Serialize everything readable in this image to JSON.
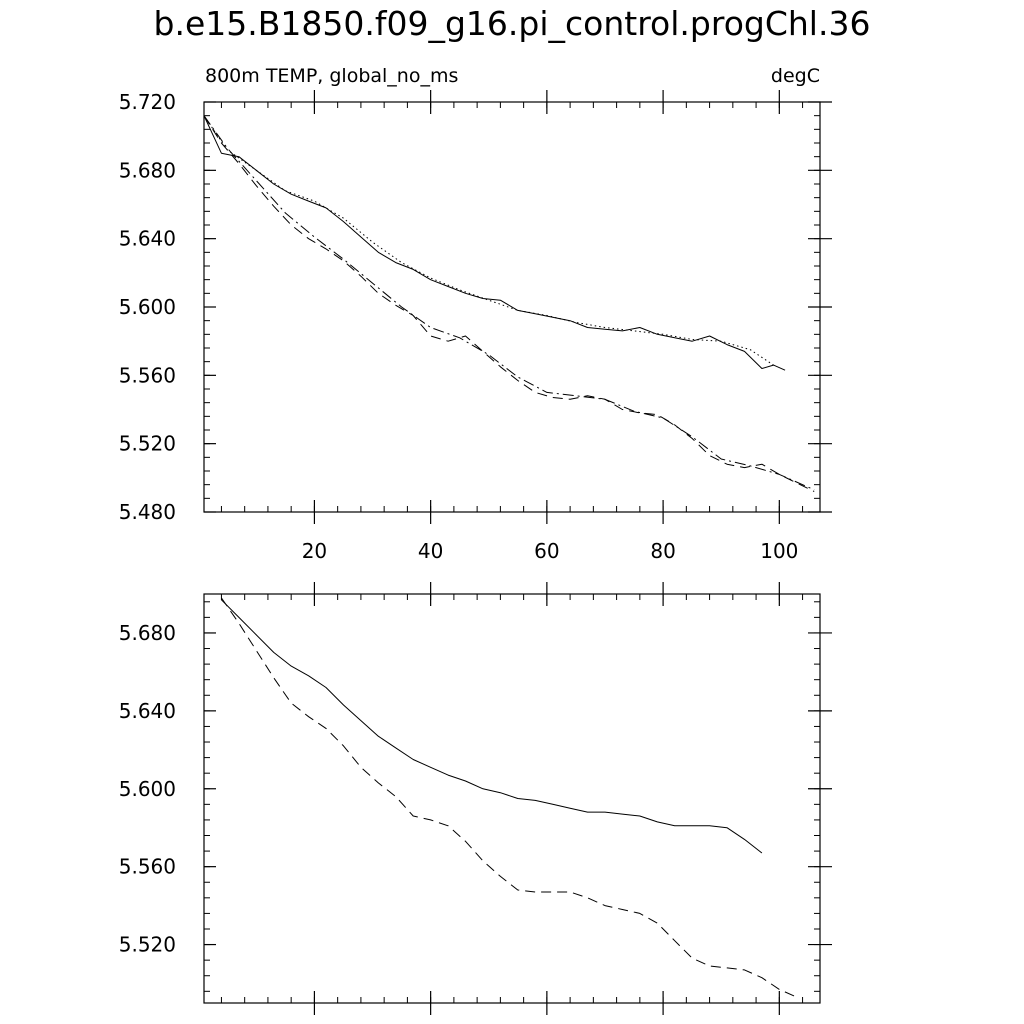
{
  "title": "b.e15.B1850.f09_g16.pi_control.progChl.36",
  "chart_data": [
    {
      "type": "line",
      "left_label": "800m TEMP, global_no_ms",
      "right_label": "degC",
      "xlim": [
        1,
        107
      ],
      "ylim": [
        5.48,
        5.72
      ],
      "xticks": [
        20,
        40,
        60,
        80,
        100
      ],
      "xtick_labels": [
        "20",
        "40",
        "60",
        "80",
        "100"
      ],
      "yticks": [
        5.48,
        5.52,
        5.56,
        5.6,
        5.64,
        5.68,
        5.72
      ],
      "ytick_labels": [
        "5.480",
        "5.520",
        "5.560",
        "5.600",
        "5.640",
        "5.680",
        "5.720"
      ],
      "series": [
        {
          "style": "solid",
          "x": [
            1,
            4,
            7,
            10,
            13,
            16,
            19,
            22,
            25,
            28,
            31,
            34,
            37,
            40,
            43,
            46,
            49,
            52,
            55,
            58,
            61,
            64,
            67,
            70,
            73,
            76,
            79,
            82,
            85,
            88,
            91,
            94,
            97,
            99,
            101
          ],
          "y": [
            5.712,
            5.69,
            5.688,
            5.68,
            5.672,
            5.666,
            5.662,
            5.658,
            5.65,
            5.641,
            5.632,
            5.626,
            5.622,
            5.616,
            5.612,
            5.608,
            5.605,
            5.604,
            5.598,
            5.596,
            5.594,
            5.592,
            5.588,
            5.587,
            5.586,
            5.588,
            5.584,
            5.582,
            5.58,
            5.583,
            5.578,
            5.574,
            5.564,
            5.566,
            5.563
          ]
        },
        {
          "style": "dotted",
          "x": [
            1,
            5,
            10,
            15,
            20,
            25,
            30,
            35,
            40,
            45,
            50,
            55,
            60,
            65,
            70,
            75,
            80,
            85,
            90,
            95,
            99
          ],
          "y": [
            5.712,
            5.692,
            5.68,
            5.668,
            5.662,
            5.652,
            5.638,
            5.626,
            5.617,
            5.61,
            5.604,
            5.598,
            5.595,
            5.591,
            5.588,
            5.586,
            5.584,
            5.581,
            5.58,
            5.575,
            5.566
          ]
        },
        {
          "style": "dashed",
          "x": [
            1,
            4,
            7,
            10,
            13,
            16,
            19,
            22,
            25,
            28,
            31,
            34,
            37,
            40,
            43,
            46,
            49,
            52,
            55,
            58,
            61,
            64,
            67,
            70,
            73,
            76,
            79,
            82,
            85,
            88,
            91,
            94,
            97,
            100,
            103,
            106
          ],
          "y": [
            5.712,
            5.696,
            5.684,
            5.671,
            5.659,
            5.648,
            5.64,
            5.634,
            5.627,
            5.618,
            5.608,
            5.601,
            5.595,
            5.583,
            5.58,
            5.583,
            5.574,
            5.565,
            5.557,
            5.55,
            5.547,
            5.546,
            5.548,
            5.546,
            5.54,
            5.538,
            5.537,
            5.531,
            5.523,
            5.513,
            5.508,
            5.506,
            5.508,
            5.502,
            5.497,
            5.492
          ]
        },
        {
          "style": "dashdot",
          "x": [
            1,
            5,
            10,
            15,
            20,
            25,
            30,
            35,
            40,
            45,
            50,
            55,
            60,
            65,
            70,
            75,
            80,
            85,
            90,
            95,
            100,
            106
          ],
          "y": [
            5.712,
            5.693,
            5.674,
            5.655,
            5.641,
            5.628,
            5.614,
            5.6,
            5.588,
            5.582,
            5.572,
            5.559,
            5.55,
            5.548,
            5.546,
            5.539,
            5.535,
            5.524,
            5.511,
            5.507,
            5.502,
            5.493
          ]
        }
      ]
    },
    {
      "type": "line",
      "xlim": [
        1,
        107
      ],
      "ylim": [
        5.49,
        5.7
      ],
      "xticks": [
        20,
        40,
        60,
        80,
        100
      ],
      "yticks": [
        5.52,
        5.56,
        5.6,
        5.64,
        5.68
      ],
      "ytick_labels": [
        "5.520",
        "5.560",
        "5.600",
        "5.640",
        "5.680"
      ],
      "series": [
        {
          "style": "solid",
          "x": [
            4,
            7,
            10,
            13,
            16,
            19,
            22,
            25,
            28,
            31,
            34,
            37,
            40,
            43,
            46,
            49,
            52,
            55,
            58,
            61,
            64,
            67,
            70,
            73,
            76,
            79,
            82,
            85,
            88,
            91,
            94,
            97
          ],
          "y": [
            5.697,
            5.688,
            5.679,
            5.67,
            5.663,
            5.658,
            5.652,
            5.643,
            5.635,
            5.627,
            5.621,
            5.615,
            5.611,
            5.607,
            5.604,
            5.6,
            5.598,
            5.595,
            5.594,
            5.592,
            5.59,
            5.588,
            5.588,
            5.587,
            5.586,
            5.583,
            5.581,
            5.581,
            5.581,
            5.58,
            5.574,
            5.567
          ]
        },
        {
          "style": "dashed",
          "x": [
            4,
            7,
            10,
            13,
            16,
            19,
            22,
            25,
            28,
            31,
            34,
            37,
            40,
            43,
            46,
            49,
            52,
            55,
            58,
            61,
            64,
            67,
            70,
            73,
            76,
            79,
            82,
            85,
            88,
            91,
            94,
            97,
            100,
            103
          ],
          "y": [
            5.698,
            5.685,
            5.671,
            5.657,
            5.644,
            5.637,
            5.631,
            5.622,
            5.611,
            5.603,
            5.596,
            5.586,
            5.584,
            5.581,
            5.573,
            5.563,
            5.555,
            5.548,
            5.547,
            5.547,
            5.547,
            5.544,
            5.54,
            5.538,
            5.536,
            5.531,
            5.522,
            5.513,
            5.509,
            5.508,
            5.507,
            5.503,
            5.497,
            5.493
          ]
        }
      ]
    }
  ]
}
